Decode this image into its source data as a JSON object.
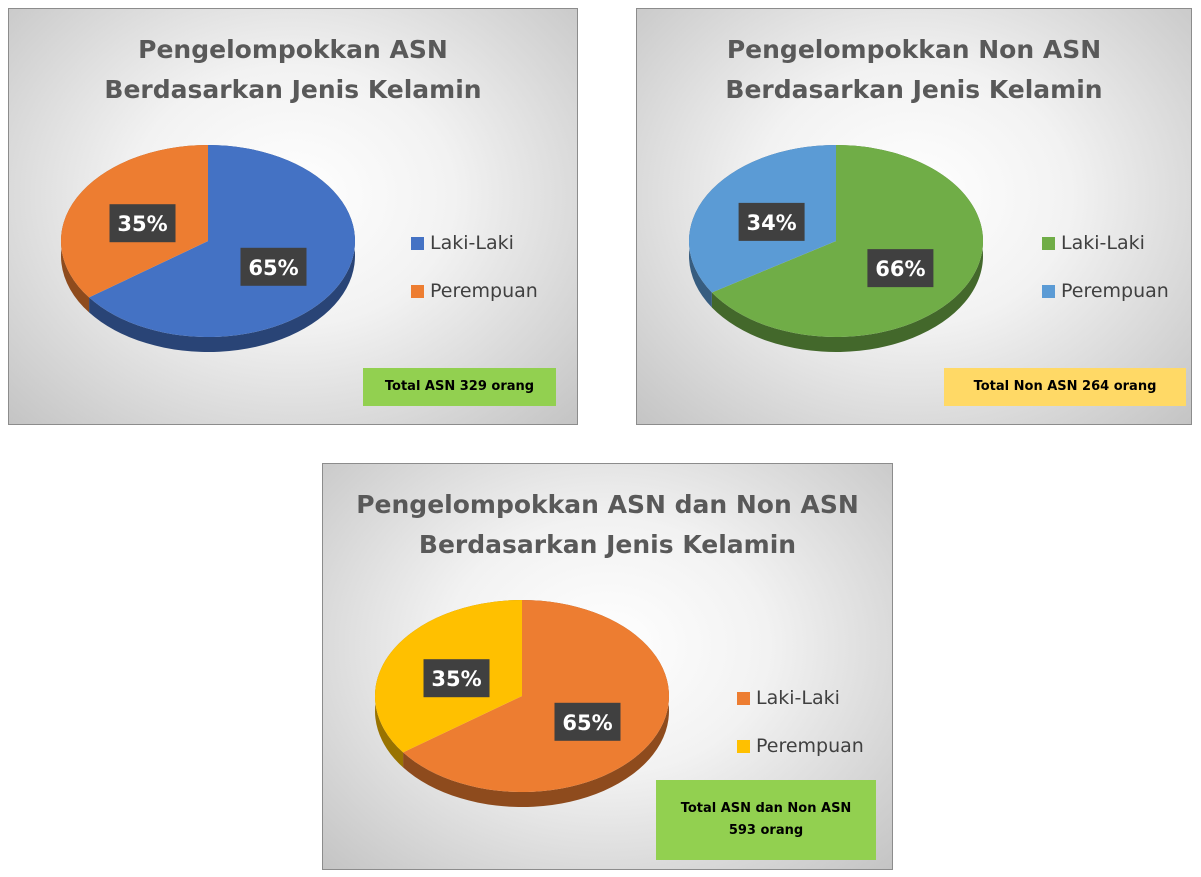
{
  "chart_data": [
    {
      "type": "pie",
      "title": [
        "Pengelompokkan ASN",
        "Berdasarkan Jenis Kelamin"
      ],
      "categories": [
        "Laki-Laki",
        "Perempuan"
      ],
      "values": [
        65,
        35
      ],
      "value_labels": [
        "65%",
        "35%"
      ],
      "colors": [
        "#4472c4",
        "#ed7d31"
      ],
      "annotation": "Total ASN 329 orang",
      "annotation_color": "#92d050"
    },
    {
      "type": "pie",
      "title": [
        "Pengelompokkan Non ASN",
        "Berdasarkan Jenis Kelamin"
      ],
      "categories": [
        "Laki-Laki",
        "Perempuan"
      ],
      "values": [
        66,
        34
      ],
      "value_labels": [
        "66%",
        "34%"
      ],
      "colors": [
        "#70ad47",
        "#5b9bd5"
      ],
      "annotation": "Total Non ASN 264 orang",
      "annotation_color": "#ffd966"
    },
    {
      "type": "pie",
      "title": [
        "Pengelompokkan ASN dan Non ASN",
        "Berdasarkan Jenis Kelamin"
      ],
      "categories": [
        "Laki-Laki",
        "Perempuan"
      ],
      "values": [
        65,
        35
      ],
      "value_labels": [
        "65%",
        "35%"
      ],
      "colors": [
        "#ed7d31",
        "#ffc000"
      ],
      "annotation": "Total ASN dan Non ASN 593 orang",
      "annotation_color": "#92d050"
    }
  ]
}
